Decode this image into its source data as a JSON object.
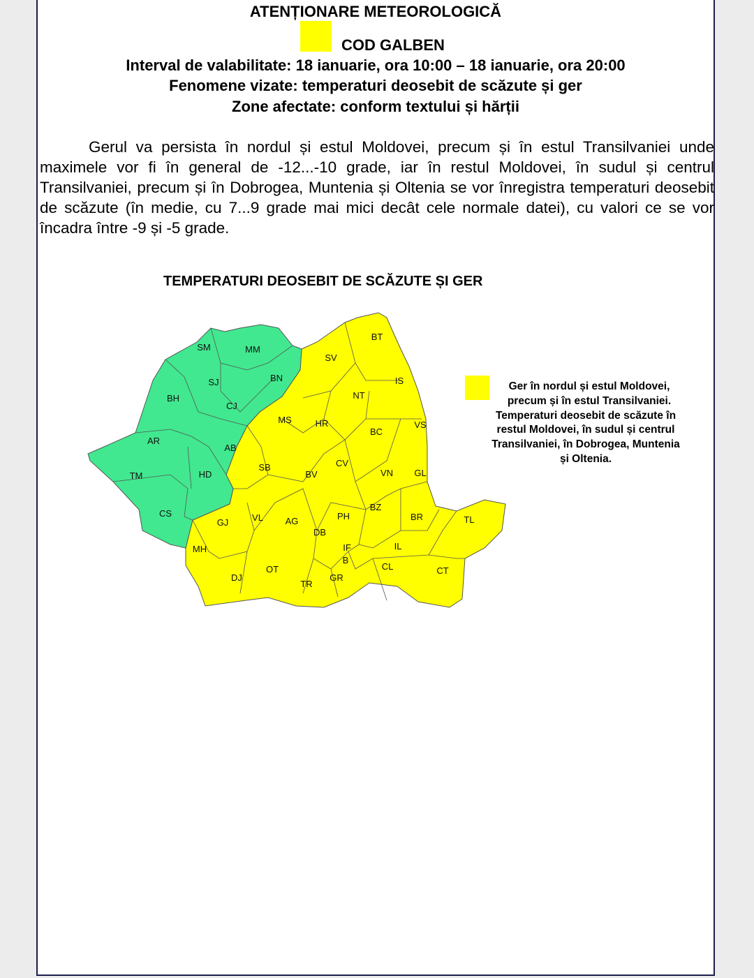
{
  "header": {
    "title": "ATENȚIONARE METEOROLOGICĂ",
    "code_label": "COD GALBEN",
    "code_color": "#ffff00",
    "interval": "Interval de valabilitate: 18 ianuarie, ora 10:00 – 18 ianuarie, ora 20:00",
    "phenomena": "Fenomene vizate: temperaturi deosebit de scăzute și ger",
    "zones": "Zone afectate: conform textului și hărții"
  },
  "body_text": "Gerul va persista în nordul și estul Moldovei, precum și în estul Transilvaniei unde maximele vor fi în general de -12...-10 grade, iar în restul Moldovei, în sudul și centrul Transilvaniei, precum și în Dobrogea, Muntenia și Oltenia se vor înregistra temperaturi deosebit de scăzute (în medie, cu 7...9 grade mai mici decât cele normale datei), cu valori ce se vor încadra între -9 și -5 grade.",
  "map": {
    "title": "TEMPERATURI DEOSEBIT DE SCĂZUTE ȘI GER",
    "colors": {
      "warning": "#ffff00",
      "none": "#41e88f"
    },
    "legend": {
      "color": "#ffff00",
      "line1": "Ger în nordul și estul Moldovei, precum și în estul Transilvaniei.",
      "line2": "Temperaturi deosebit de scăzute în restul Moldovei, în sudul și centrul Transilvaniei, în Dobrogea, Muntenia și Oltenia."
    },
    "counties": {
      "green": [
        "SM",
        "MM",
        "SJ",
        "BN",
        "BH",
        "CJ",
        "AR",
        "AB",
        "TM",
        "HD",
        "CS"
      ],
      "yellow": [
        "BT",
        "SV",
        "IS",
        "NT",
        "MS",
        "HR",
        "BC",
        "VS",
        "SB",
        "BV",
        "CV",
        "VN",
        "GL",
        "GJ",
        "VL",
        "AG",
        "PH",
        "BZ",
        "BR",
        "TL",
        "DB",
        "MH",
        "IF",
        "B",
        "IL",
        "DJ",
        "OT",
        "TR",
        "GR",
        "CL",
        "CT"
      ]
    }
  }
}
